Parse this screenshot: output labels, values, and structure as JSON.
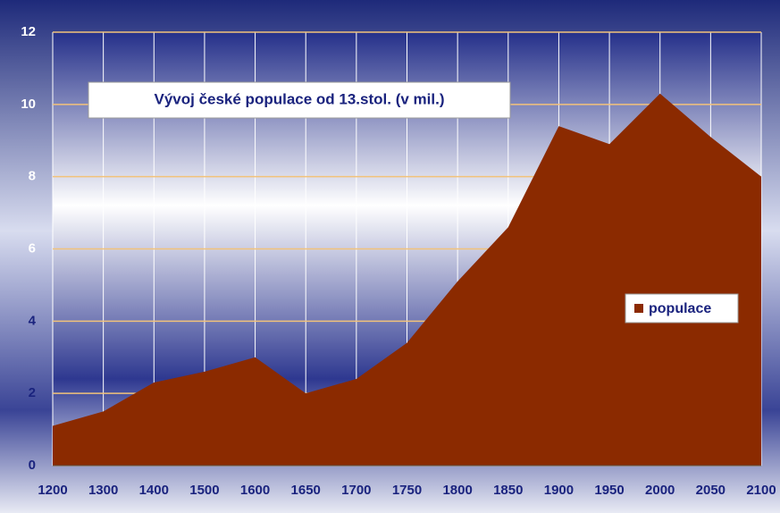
{
  "chart_data": {
    "type": "area",
    "title": "Vývoj české populace od 13.stol. (v mil.)",
    "categories": [
      "1200",
      "1300",
      "1400",
      "1500",
      "1600",
      "1650",
      "1700",
      "1750",
      "1800",
      "1850",
      "1900",
      "1950",
      "2000",
      "2050",
      "2100"
    ],
    "series": [
      {
        "name": "populace",
        "color": "#8b2a00",
        "values": [
          1.1,
          1.5,
          2.3,
          2.6,
          3.0,
          2.0,
          2.4,
          3.4,
          5.1,
          6.6,
          9.4,
          8.9,
          10.3,
          9.1,
          8.0
        ]
      }
    ],
    "ylim": [
      0,
      12
    ],
    "yticks": [
      0,
      2,
      4,
      6,
      8,
      10,
      12
    ],
    "grid": true,
    "legend": "right"
  }
}
